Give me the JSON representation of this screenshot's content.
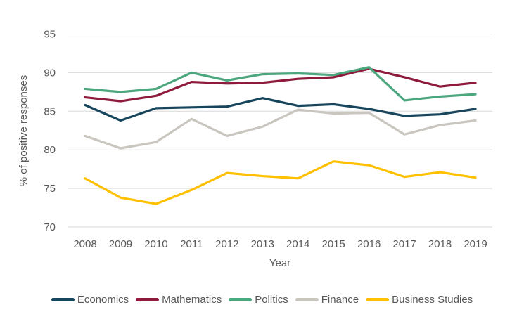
{
  "chart_data": {
    "type": "line",
    "title": "",
    "xlabel": "Year",
    "ylabel": "% of positive responses",
    "categories": [
      "2008",
      "2009",
      "2010",
      "2011",
      "2012",
      "2013",
      "2014",
      "2015",
      "2016",
      "2017",
      "2018",
      "2019"
    ],
    "series": [
      {
        "name": "Economics",
        "color": "#17465C",
        "values": [
          85.8,
          83.8,
          85.4,
          85.5,
          85.6,
          86.7,
          85.7,
          85.9,
          85.3,
          84.4,
          84.6,
          85.3
        ]
      },
      {
        "name": "Mathematics",
        "color": "#8E1A3C",
        "values": [
          86.8,
          86.3,
          87.0,
          88.8,
          88.6,
          88.7,
          89.2,
          89.4,
          90.5,
          89.4,
          88.2,
          88.7
        ]
      },
      {
        "name": "Politics",
        "color": "#4CA77F",
        "values": [
          87.9,
          87.5,
          87.9,
          90.0,
          89.0,
          89.8,
          89.9,
          89.7,
          90.7,
          86.4,
          86.9,
          87.2
        ]
      },
      {
        "name": "Finance",
        "color": "#C9C5BF",
        "values": [
          81.8,
          80.2,
          81.0,
          84.0,
          81.8,
          83.0,
          85.2,
          84.7,
          84.8,
          82.0,
          83.2,
          83.8
        ]
      },
      {
        "name": "Business Studies",
        "color": "#FFC000",
        "values": [
          76.3,
          73.8,
          73.0,
          74.8,
          77.0,
          76.6,
          76.3,
          78.5,
          78.0,
          76.5,
          77.1,
          76.4
        ]
      }
    ],
    "ylim": [
      70,
      95
    ],
    "yticks": [
      70,
      75,
      80,
      85,
      90,
      95
    ],
    "grid": "horizontal",
    "gridline_color": "#D9D9D9",
    "text_color": "#595959",
    "legend_position": "bottom"
  }
}
